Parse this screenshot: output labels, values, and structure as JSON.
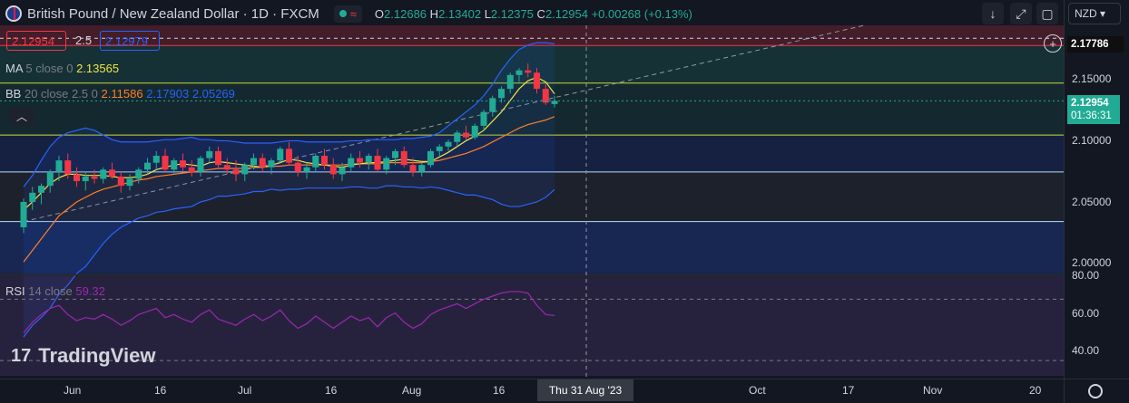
{
  "header": {
    "title": "British Pound / New Zealand Dollar · 1D · FXCM",
    "ohlc": {
      "o_label": "O",
      "o": "2.12686",
      "h_label": "H",
      "h": "2.13402",
      "l_label": "L",
      "l": "2.12375",
      "c_label": "C",
      "c": "2.12954",
      "change": "+0.00268 (+0.13%)"
    },
    "market_icon": "wave-icon"
  },
  "sell_price": "2.12954",
  "spread": "2.5",
  "buy_price": "2.12979",
  "indicators": {
    "ma": {
      "name": "MA",
      "params": "5 close 0",
      "value": "2.13565",
      "color": "#f0e442"
    },
    "bb": {
      "name": "BB",
      "params": "20 close 2.5 0",
      "basis": "2.11586",
      "upper": "2.17903",
      "lower": "2.05269",
      "basis_color": "#ff7f27",
      "band_color": "#2962ff"
    },
    "rsi": {
      "name": "RSI",
      "params": "14 close",
      "value": "59.32",
      "color": "#9c27b0"
    }
  },
  "toolbar": {
    "currency": "NZD"
  },
  "price_axis": {
    "ticks": [
      "2.15000",
      "2.10000",
      "2.05000",
      "2.00000"
    ],
    "high_label": "2.17786",
    "last_price": "2.12954",
    "countdown": "01:36:31"
  },
  "rsi_axis": {
    "ticks": [
      "80.00",
      "60.00",
      "40.00"
    ]
  },
  "time_axis": {
    "ticks": [
      "Jun",
      "16",
      "Jul",
      "16",
      "Aug",
      "16",
      "Oct",
      "17",
      "Nov",
      "20"
    ],
    "crosshair": "Thu 31 Aug '23"
  },
  "brand": "TradingView",
  "colors": {
    "up": "#22ab94",
    "down": "#f23645",
    "bg": "#131722"
  },
  "chart_data": {
    "type": "candlestick",
    "symbol": "GBPNZD",
    "timeframe": "1D",
    "ylim": [
      1.98,
      2.195
    ],
    "candles": [
      [
        2.02,
        2.045,
        2.015,
        2.042
      ],
      [
        2.042,
        2.055,
        2.035,
        2.05
      ],
      [
        2.05,
        2.058,
        2.04,
        2.056
      ],
      [
        2.056,
        2.07,
        2.05,
        2.068
      ],
      [
        2.068,
        2.082,
        2.06,
        2.078
      ],
      [
        2.078,
        2.084,
        2.062,
        2.066
      ],
      [
        2.066,
        2.072,
        2.055,
        2.06
      ],
      [
        2.06,
        2.068,
        2.052,
        2.064
      ],
      [
        2.064,
        2.07,
        2.058,
        2.062
      ],
      [
        2.062,
        2.072,
        2.058,
        2.07
      ],
      [
        2.07,
        2.076,
        2.062,
        2.064
      ],
      [
        2.064,
        2.068,
        2.05,
        2.056
      ],
      [
        2.056,
        2.066,
        2.052,
        2.062
      ],
      [
        2.062,
        2.072,
        2.058,
        2.07
      ],
      [
        2.07,
        2.08,
        2.066,
        2.076
      ],
      [
        2.076,
        2.086,
        2.07,
        2.082
      ],
      [
        2.082,
        2.088,
        2.068,
        2.07
      ],
      [
        2.07,
        2.08,
        2.066,
        2.078
      ],
      [
        2.078,
        2.084,
        2.068,
        2.072
      ],
      [
        2.072,
        2.078,
        2.064,
        2.068
      ],
      [
        2.068,
        2.082,
        2.064,
        2.08
      ],
      [
        2.08,
        2.09,
        2.076,
        2.086
      ],
      [
        2.086,
        2.09,
        2.072,
        2.074
      ],
      [
        2.074,
        2.08,
        2.066,
        2.07
      ],
      [
        2.07,
        2.078,
        2.06,
        2.066
      ],
      [
        2.066,
        2.076,
        2.06,
        2.074
      ],
      [
        2.074,
        2.084,
        2.07,
        2.08
      ],
      [
        2.08,
        2.084,
        2.068,
        2.072
      ],
      [
        2.072,
        2.08,
        2.066,
        2.078
      ],
      [
        2.078,
        2.09,
        2.076,
        2.088
      ],
      [
        2.088,
        2.094,
        2.074,
        2.076
      ],
      [
        2.076,
        2.082,
        2.064,
        2.068
      ],
      [
        2.068,
        2.076,
        2.062,
        2.072
      ],
      [
        2.072,
        2.084,
        2.068,
        2.082
      ],
      [
        2.082,
        2.088,
        2.07,
        2.074
      ],
      [
        2.074,
        2.08,
        2.062,
        2.066
      ],
      [
        2.066,
        2.076,
        2.06,
        2.072
      ],
      [
        2.072,
        2.084,
        2.068,
        2.08
      ],
      [
        2.08,
        2.086,
        2.072,
        2.076
      ],
      [
        2.076,
        2.084,
        2.07,
        2.082
      ],
      [
        2.082,
        2.088,
        2.068,
        2.07
      ],
      [
        2.07,
        2.082,
        2.066,
        2.08
      ],
      [
        2.08,
        2.088,
        2.074,
        2.086
      ],
      [
        2.086,
        2.09,
        2.072,
        2.074
      ],
      [
        2.074,
        2.08,
        2.064,
        2.068
      ],
      [
        2.068,
        2.076,
        2.064,
        2.074
      ],
      [
        2.074,
        2.088,
        2.072,
        2.086
      ],
      [
        2.086,
        2.092,
        2.082,
        2.09
      ],
      [
        2.09,
        2.096,
        2.086,
        2.094
      ],
      [
        2.094,
        2.104,
        2.09,
        2.102
      ],
      [
        2.102,
        2.108,
        2.096,
        2.098
      ],
      [
        2.098,
        2.11,
        2.096,
        2.108
      ],
      [
        2.108,
        2.122,
        2.104,
        2.12
      ],
      [
        2.12,
        2.134,
        2.116,
        2.132
      ],
      [
        2.132,
        2.142,
        2.128,
        2.14
      ],
      [
        2.14,
        2.154,
        2.136,
        2.152
      ],
      [
        2.152,
        2.158,
        2.146,
        2.156
      ],
      [
        2.156,
        2.162,
        2.15,
        2.154
      ],
      [
        2.154,
        2.158,
        2.136,
        2.14
      ],
      [
        2.14,
        2.144,
        2.126,
        2.128
      ],
      [
        2.12686,
        2.13402,
        2.12375,
        2.12954
      ]
    ],
    "ma5": [
      2.035,
      2.042,
      2.05,
      2.058,
      2.063,
      2.066,
      2.066,
      2.065,
      2.065,
      2.065,
      2.064,
      2.063,
      2.063,
      2.064,
      2.066,
      2.07,
      2.072,
      2.074,
      2.075,
      2.074,
      2.073,
      2.076,
      2.077,
      2.076,
      2.075,
      2.074,
      2.073,
      2.072,
      2.074,
      2.076,
      2.079,
      2.078,
      2.076,
      2.075,
      2.074,
      2.073,
      2.072,
      2.074,
      2.075,
      2.076,
      2.076,
      2.077,
      2.078,
      2.079,
      2.078,
      2.077,
      2.077,
      2.081,
      2.085,
      2.09,
      2.095,
      2.099,
      2.104,
      2.112,
      2.12,
      2.13,
      2.14,
      2.147,
      2.15,
      2.146,
      2.13565
    ],
    "bb_upper": [
      2.055,
      2.065,
      2.078,
      2.09,
      2.098,
      2.102,
      2.104,
      2.106,
      2.104,
      2.1,
      2.096,
      2.094,
      2.094,
      2.094,
      2.094,
      2.095,
      2.096,
      2.096,
      2.097,
      2.098,
      2.096,
      2.096,
      2.095,
      2.095,
      2.094,
      2.093,
      2.093,
      2.093,
      2.093,
      2.094,
      2.095,
      2.095,
      2.094,
      2.094,
      2.094,
      2.094,
      2.094,
      2.095,
      2.095,
      2.096,
      2.096,
      2.096,
      2.096,
      2.097,
      2.097,
      2.098,
      2.099,
      2.102,
      2.108,
      2.114,
      2.12,
      2.126,
      2.134,
      2.144,
      2.156,
      2.166,
      2.174,
      2.178,
      2.18,
      2.18,
      2.17903
    ],
    "bb_basis": [
      1.99,
      2.0,
      2.01,
      2.02,
      2.03,
      2.036,
      2.042,
      2.046,
      2.05,
      2.053,
      2.055,
      2.057,
      2.059,
      2.061,
      2.062,
      2.064,
      2.065,
      2.066,
      2.067,
      2.068,
      2.069,
      2.07,
      2.071,
      2.071,
      2.071,
      2.071,
      2.072,
      2.072,
      2.073,
      2.073,
      2.074,
      2.074,
      2.074,
      2.074,
      2.074,
      2.074,
      2.074,
      2.075,
      2.075,
      2.075,
      2.075,
      2.076,
      2.076,
      2.076,
      2.076,
      2.076,
      2.077,
      2.078,
      2.08,
      2.082,
      2.084,
      2.087,
      2.09,
      2.094,
      2.098,
      2.102,
      2.106,
      2.109,
      2.111,
      2.113,
      2.11586
    ],
    "bb_lower": [
      1.925,
      1.935,
      1.942,
      1.95,
      1.962,
      1.97,
      1.98,
      1.986,
      1.996,
      2.006,
      2.014,
      2.02,
      2.024,
      2.028,
      2.03,
      2.033,
      2.034,
      2.036,
      2.037,
      2.038,
      2.042,
      2.044,
      2.047,
      2.047,
      2.048,
      2.049,
      2.051,
      2.051,
      2.053,
      2.052,
      2.053,
      2.053,
      2.054,
      2.054,
      2.054,
      2.054,
      2.054,
      2.055,
      2.055,
      2.054,
      2.054,
      2.056,
      2.056,
      2.055,
      2.055,
      2.054,
      2.055,
      2.054,
      2.052,
      2.05,
      2.048,
      2.048,
      2.046,
      2.044,
      2.04,
      2.038,
      2.038,
      2.04,
      2.042,
      2.046,
      2.05269
    ],
    "rsi": [
      48,
      55,
      60,
      64,
      66,
      60,
      56,
      58,
      57,
      60,
      57,
      53,
      56,
      60,
      62,
      64,
      58,
      60,
      57,
      55,
      60,
      63,
      57,
      55,
      53,
      57,
      60,
      56,
      59,
      63,
      56,
      51,
      54,
      59,
      55,
      51,
      55,
      59,
      56,
      58,
      52,
      58,
      61,
      55,
      51,
      54,
      60,
      63,
      65,
      67,
      64,
      67,
      70,
      72,
      74,
      75,
      75,
      74,
      66,
      60,
      59.32
    ],
    "zones": [
      {
        "from": 2.1775,
        "to": 2.195,
        "color": "rgba(242,54,69,0.22)"
      },
      {
        "from": 2.145,
        "to": 2.1775,
        "color": "rgba(34,171,148,0.18)"
      },
      {
        "from": 2.1,
        "to": 2.145,
        "color": "rgba(34,171,148,0.12)"
      },
      {
        "from": 2.068,
        "to": 2.1,
        "color": "rgba(41,98,255,0.14)"
      },
      {
        "from": 2.025,
        "to": 2.068,
        "color": "rgba(120,123,134,0.10)"
      },
      {
        "from": 1.98,
        "to": 2.025,
        "color": "rgba(41,98,255,0.22)"
      }
    ],
    "hlines": [
      {
        "y": 2.1775,
        "color": "#f23645"
      },
      {
        "y": 2.145,
        "color": "#cddc39"
      },
      {
        "y": 2.1,
        "color": "#cddc39"
      },
      {
        "y": 2.068,
        "color": "#bbdefb"
      },
      {
        "y": 2.025,
        "color": "#bbdefb"
      }
    ],
    "trendline": {
      "from": [
        0,
        2.025
      ],
      "to": [
        95,
        2.195
      ]
    },
    "rsi_levels": [
      70,
      30
    ]
  }
}
